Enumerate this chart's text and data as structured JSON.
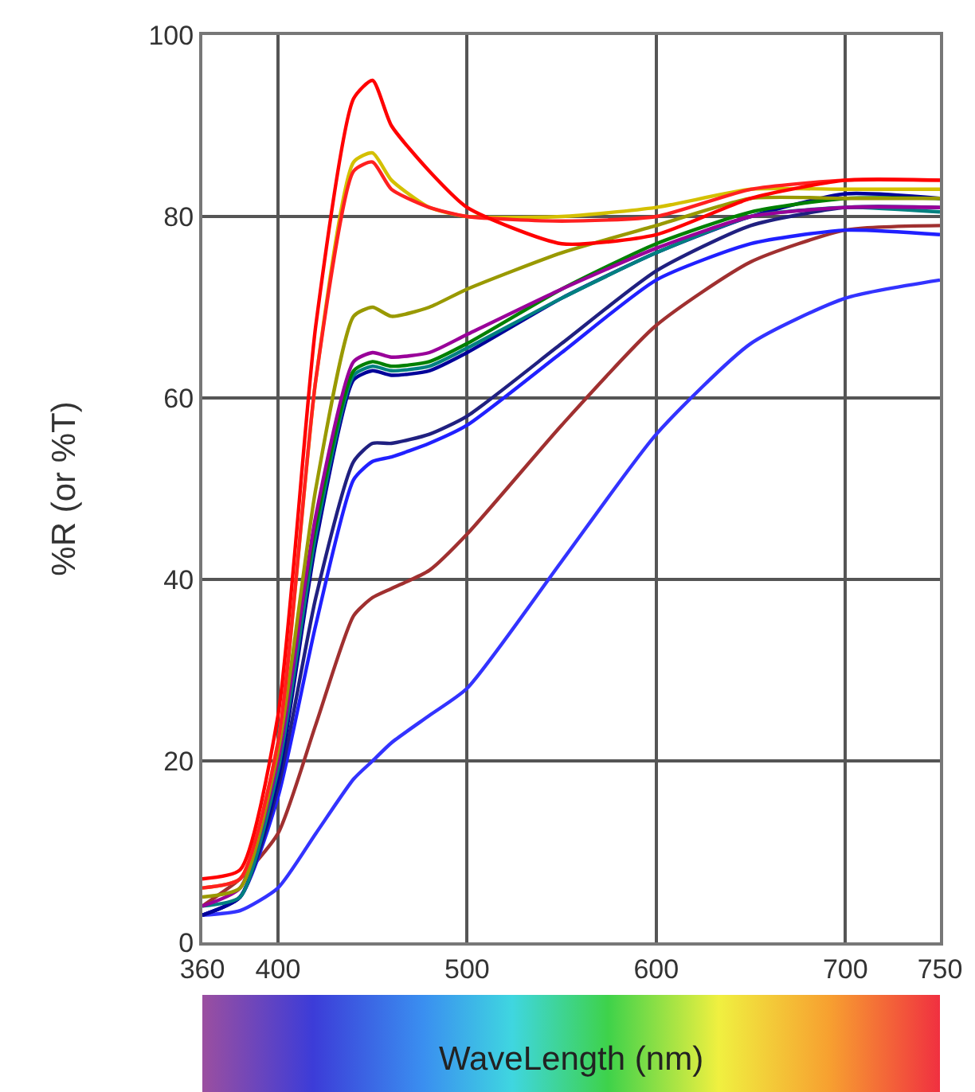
{
  "chart_data": {
    "type": "line",
    "xlabel": "WaveLength (nm)",
    "ylabel": "%R (or %T)",
    "x": [
      360,
      380,
      400,
      420,
      440,
      450,
      460,
      480,
      500,
      550,
      600,
      650,
      700,
      750
    ],
    "xlim": [
      360,
      750
    ],
    "xticks": [
      360,
      400,
      500,
      600,
      700,
      750
    ],
    "ylim": [
      0,
      100
    ],
    "yticks": [
      0,
      20,
      40,
      60,
      80,
      100
    ],
    "grid": true,
    "marker": "none",
    "line_style": "solid",
    "series": [
      {
        "color": "#3333ff",
        "values": [
          3,
          3.5,
          6,
          12,
          18,
          20,
          22,
          25,
          28,
          42,
          56,
          66,
          71,
          73
        ]
      },
      {
        "color": "#a03030",
        "values": [
          4,
          7,
          12,
          24,
          36,
          38,
          39,
          41,
          45,
          57,
          68,
          75,
          78.5,
          79
        ]
      },
      {
        "color": "#2020ff",
        "values": [
          3,
          5,
          16,
          35,
          51,
          53,
          53.5,
          55,
          57,
          65,
          73,
          77,
          78.5,
          78
        ]
      },
      {
        "color": "#202080",
        "values": [
          3,
          5,
          17,
          38,
          53,
          55,
          55,
          56,
          58,
          66,
          74,
          79,
          81,
          81
        ]
      },
      {
        "color": "#000099",
        "values": [
          3,
          5,
          18,
          44,
          62,
          63,
          62.5,
          63,
          65,
          71,
          76,
          80,
          82.5,
          82
        ]
      },
      {
        "color": "#008080",
        "values": [
          4,
          5,
          19,
          45,
          62.5,
          63.5,
          63,
          63.5,
          65.5,
          71,
          76,
          80,
          81,
          80.5
        ]
      },
      {
        "color": "#008000",
        "values": [
          null,
          null,
          20,
          46,
          63,
          64,
          63.5,
          64,
          66,
          72,
          77,
          80.5,
          82,
          82
        ]
      },
      {
        "color": "#990099",
        "values": [
          4,
          6,
          20,
          47,
          64,
          65,
          64.5,
          65,
          67,
          72,
          76.5,
          80,
          81,
          81
        ]
      },
      {
        "color": "#999900",
        "values": [
          5,
          6,
          21,
          50,
          69,
          70,
          69,
          70,
          72,
          76,
          79,
          82,
          82,
          82
        ]
      },
      {
        "color": "#d4c000",
        "values": [
          6,
          7,
          22,
          62,
          86,
          87,
          84,
          81,
          80,
          80,
          81,
          83,
          83,
          83
        ]
      },
      {
        "color": "#ff2020",
        "values": [
          6,
          7,
          22,
          62,
          85,
          86,
          83,
          81,
          80,
          79.5,
          80,
          83,
          84,
          84
        ]
      },
      {
        "color": "#ff0000",
        "values": [
          7,
          8,
          25,
          68,
          93,
          95,
          90,
          85,
          81,
          77,
          78,
          82,
          84,
          84
        ]
      }
    ]
  }
}
